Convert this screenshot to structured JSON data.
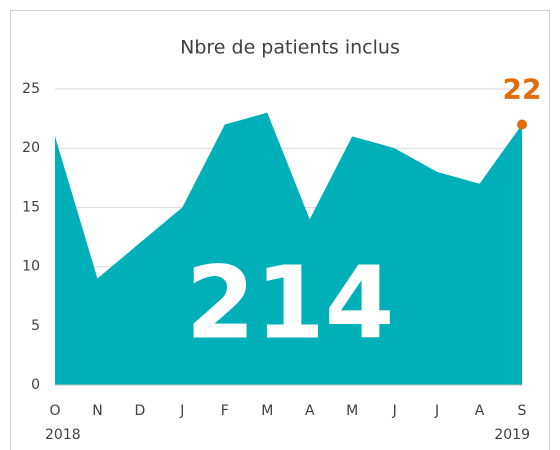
{
  "chart_data": {
    "type": "area",
    "title": "Nbre de patients inclus",
    "categories": [
      "O",
      "N",
      "D",
      "J",
      "F",
      "M",
      "A",
      "M",
      "J",
      "J",
      "A",
      "S"
    ],
    "year_labels": [
      "2018",
      null,
      null,
      null,
      null,
      null,
      null,
      null,
      null,
      null,
      null,
      "2019"
    ],
    "values": [
      21,
      9,
      12,
      15,
      22,
      23,
      14,
      21,
      20,
      18,
      17,
      22
    ],
    "color": "#00b0b9",
    "highlight": "last",
    "highlight_color": "#e36c0a",
    "annotation": "214",
    "ylim": [
      0,
      25
    ],
    "yticks": [
      0,
      5,
      10,
      15,
      20,
      25
    ],
    "grid": true
  }
}
